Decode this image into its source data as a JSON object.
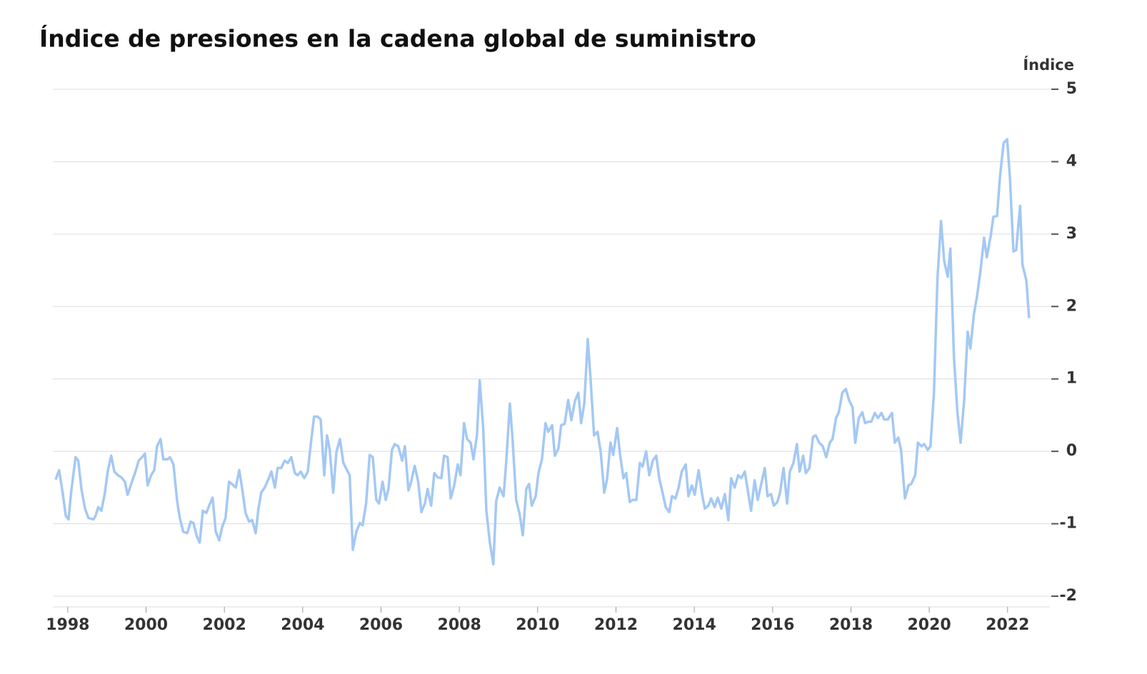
{
  "chart_data": {
    "type": "line",
    "title": "Índice de presiones en la cadena global de suministro",
    "y_label": "Índice",
    "xlim": [
      1997.62,
      2023.08
    ],
    "xticks": [
      1998,
      2000,
      2002,
      2004,
      2006,
      2008,
      2010,
      2012,
      2014,
      2016,
      2018,
      2020,
      2022
    ],
    "ylim": [
      -2,
      5
    ],
    "yticks": [
      -2,
      -1,
      0,
      1,
      2,
      3,
      4,
      5
    ],
    "grid": true,
    "series": [
      {
        "color": "#a4c8f4",
        "x": [
          1997.69,
          1997.78,
          1997.87,
          1997.95,
          1998.02,
          1998.09,
          1998.2,
          1998.27,
          1998.35,
          1998.44,
          1998.53,
          1998.66,
          1998.71,
          1998.78,
          1998.86,
          1998.95,
          1999.02,
          1999.11,
          1999.19,
          1999.28,
          1999.37,
          1999.46,
          1999.53,
          1999.62,
          1999.73,
          1999.81,
          1999.9,
          1999.97,
          2000.04,
          2000.13,
          2000.21,
          2000.28,
          2000.37,
          2000.44,
          2000.55,
          2000.61,
          2000.7,
          2000.79,
          2000.86,
          2000.95,
          2001.05,
          2001.14,
          2001.21,
          2001.3,
          2001.37,
          2001.45,
          2001.54,
          2001.61,
          2001.7,
          2001.78,
          2001.87,
          2001.94,
          2002.03,
          2002.12,
          2002.19,
          2002.29,
          2002.38,
          2002.45,
          2002.54,
          2002.63,
          2002.71,
          2002.8,
          2002.87,
          2002.94,
          2003.03,
          2003.12,
          2003.2,
          2003.29,
          2003.36,
          2003.45,
          2003.54,
          2003.62,
          2003.71,
          2003.8,
          2003.87,
          2003.95,
          2004.04,
          2004.13,
          2004.2,
          2004.29,
          2004.38,
          2004.46,
          2004.55,
          2004.62,
          2004.69,
          2004.78,
          2004.86,
          2004.95,
          2005.04,
          2005.13,
          2005.2,
          2005.28,
          2005.37,
          2005.46,
          2005.53,
          2005.62,
          2005.71,
          2005.79,
          2005.88,
          2005.95,
          2006.04,
          2006.12,
          2006.19,
          2006.28,
          2006.35,
          2006.44,
          2006.54,
          2006.61,
          2006.7,
          2006.77,
          2006.86,
          2006.95,
          2007.03,
          2007.12,
          2007.19,
          2007.28,
          2007.36,
          2007.45,
          2007.54,
          2007.61,
          2007.7,
          2007.78,
          2007.87,
          2007.96,
          2008.03,
          2008.12,
          2008.2,
          2008.29,
          2008.36,
          2008.45,
          2008.52,
          2008.61,
          2008.69,
          2008.78,
          2008.87,
          2008.94,
          2009.03,
          2009.13,
          2009.2,
          2009.29,
          2009.36,
          2009.45,
          2009.54,
          2009.62,
          2009.71,
          2009.78,
          2009.85,
          2009.95,
          2010.02,
          2010.11,
          2010.2,
          2010.27,
          2010.37,
          2010.44,
          2010.53,
          2010.6,
          2010.69,
          2010.78,
          2010.86,
          2010.95,
          2011.04,
          2011.11,
          2011.19,
          2011.28,
          2011.35,
          2011.44,
          2011.53,
          2011.61,
          2011.7,
          2011.77,
          2011.86,
          2011.93,
          2012.03,
          2012.1,
          2012.19,
          2012.26,
          2012.35,
          2012.43,
          2012.52,
          2012.61,
          2012.68,
          2012.77,
          2012.85,
          2012.94,
          2013.03,
          2013.1,
          2013.19,
          2013.27,
          2013.36,
          2013.43,
          2013.52,
          2013.59,
          2013.68,
          2013.78,
          2013.85,
          2013.94,
          2014.01,
          2014.11,
          2014.2,
          2014.27,
          2014.36,
          2014.43,
          2014.52,
          2014.6,
          2014.69,
          2014.78,
          2014.87,
          2014.94,
          2015.03,
          2015.12,
          2015.2,
          2015.29,
          2015.36,
          2015.45,
          2015.54,
          2015.62,
          2015.71,
          2015.8,
          2015.87,
          2015.96,
          2016.03,
          2016.12,
          2016.19,
          2016.28,
          2016.37,
          2016.44,
          2016.53,
          2016.62,
          2016.69,
          2016.78,
          2016.85,
          2016.94,
          2017.03,
          2017.1,
          2017.19,
          2017.28,
          2017.37,
          2017.46,
          2017.53,
          2017.62,
          2017.69,
          2017.78,
          2017.87,
          2017.95,
          2018.04,
          2018.11,
          2018.2,
          2018.29,
          2018.36,
          2018.45,
          2018.52,
          2018.61,
          2018.69,
          2018.78,
          2018.85,
          2018.94,
          2019.05,
          2019.12,
          2019.21,
          2019.28,
          2019.38,
          2019.47,
          2019.54,
          2019.64,
          2019.71,
          2019.8,
          2019.87,
          2019.96,
          2020.03,
          2020.12,
          2020.21,
          2020.3,
          2020.38,
          2020.47,
          2020.54,
          2020.63,
          2020.72,
          2020.8,
          2020.89,
          2020.98,
          2021.05,
          2021.14,
          2021.22,
          2021.31,
          2021.4,
          2021.47,
          2021.57,
          2021.64,
          2021.73,
          2021.81,
          2021.9,
          2021.99,
          2022.06,
          2022.15,
          2022.22,
          2022.32,
          2022.38,
          2022.48,
          2022.55
        ],
        "values": [
          -0.39,
          -0.26,
          -0.57,
          -0.89,
          -0.94,
          -0.55,
          -0.08,
          -0.13,
          -0.52,
          -0.79,
          -0.92,
          -0.94,
          -0.89,
          -0.77,
          -0.82,
          -0.57,
          -0.28,
          -0.06,
          -0.28,
          -0.33,
          -0.36,
          -0.42,
          -0.6,
          -0.45,
          -0.28,
          -0.13,
          -0.08,
          -0.03,
          -0.47,
          -0.33,
          -0.26,
          0.07,
          0.17,
          -0.11,
          -0.11,
          -0.08,
          -0.18,
          -0.67,
          -0.92,
          -1.11,
          -1.13,
          -0.97,
          -0.99,
          -1.18,
          -1.26,
          -0.82,
          -0.85,
          -0.75,
          -0.64,
          -1.11,
          -1.23,
          -1.05,
          -0.92,
          -0.42,
          -0.45,
          -0.5,
          -0.26,
          -0.5,
          -0.85,
          -0.97,
          -0.95,
          -1.13,
          -0.79,
          -0.57,
          -0.5,
          -0.39,
          -0.28,
          -0.5,
          -0.23,
          -0.23,
          -0.13,
          -0.16,
          -0.08,
          -0.3,
          -0.33,
          -0.28,
          -0.37,
          -0.28,
          0.07,
          0.48,
          0.48,
          0.44,
          -0.33,
          0.22,
          0.02,
          -0.57,
          -0.01,
          0.17,
          -0.16,
          -0.26,
          -0.33,
          -1.36,
          -1.11,
          -0.99,
          -1.02,
          -0.72,
          -0.05,
          -0.08,
          -0.67,
          -0.72,
          -0.42,
          -0.67,
          -0.52,
          0.02,
          0.1,
          0.07,
          -0.13,
          0.07,
          -0.54,
          -0.42,
          -0.2,
          -0.42,
          -0.84,
          -0.72,
          -0.52,
          -0.75,
          -0.3,
          -0.36,
          -0.37,
          -0.06,
          -0.08,
          -0.65,
          -0.47,
          -0.18,
          -0.33,
          0.39,
          0.17,
          0.12,
          -0.11,
          0.22,
          0.98,
          0.32,
          -0.82,
          -1.26,
          -1.56,
          -0.69,
          -0.5,
          -0.62,
          -0.13,
          0.66,
          0.17,
          -0.67,
          -0.87,
          -1.16,
          -0.52,
          -0.45,
          -0.75,
          -0.62,
          -0.3,
          -0.11,
          0.39,
          0.27,
          0.36,
          -0.06,
          0.04,
          0.36,
          0.38,
          0.71,
          0.43,
          0.69,
          0.81,
          0.39,
          0.66,
          1.55,
          1.01,
          0.22,
          0.27,
          -0.01,
          -0.57,
          -0.39,
          0.12,
          -0.05,
          0.32,
          -0.03,
          -0.37,
          -0.3,
          -0.7,
          -0.67,
          -0.67,
          -0.16,
          -0.21,
          0.0,
          -0.33,
          -0.13,
          -0.06,
          -0.36,
          -0.57,
          -0.77,
          -0.84,
          -0.62,
          -0.65,
          -0.52,
          -0.28,
          -0.18,
          -0.62,
          -0.47,
          -0.6,
          -0.26,
          -0.6,
          -0.79,
          -0.75,
          -0.65,
          -0.77,
          -0.64,
          -0.79,
          -0.59,
          -0.95,
          -0.37,
          -0.5,
          -0.33,
          -0.37,
          -0.28,
          -0.52,
          -0.82,
          -0.4,
          -0.67,
          -0.45,
          -0.23,
          -0.62,
          -0.59,
          -0.75,
          -0.7,
          -0.57,
          -0.23,
          -0.72,
          -0.28,
          -0.16,
          0.1,
          -0.28,
          -0.06,
          -0.3,
          -0.23,
          0.2,
          0.22,
          0.12,
          0.07,
          -0.08,
          0.12,
          0.17,
          0.46,
          0.54,
          0.81,
          0.86,
          0.71,
          0.61,
          0.12,
          0.46,
          0.54,
          0.39,
          0.41,
          0.41,
          0.53,
          0.46,
          0.53,
          0.44,
          0.44,
          0.53,
          0.12,
          0.19,
          0.02,
          -0.65,
          -0.47,
          -0.45,
          -0.33,
          0.12,
          0.07,
          0.1,
          0.02,
          0.07,
          0.81,
          2.39,
          3.18,
          2.63,
          2.41,
          2.8,
          1.3,
          0.53,
          0.12,
          0.69,
          1.65,
          1.42,
          1.89,
          2.14,
          2.5,
          2.95,
          2.68,
          2.98,
          3.24,
          3.25,
          3.82,
          4.26,
          4.31,
          3.77,
          2.76,
          2.78,
          3.39,
          2.58,
          2.36,
          1.84
        ]
      }
    ]
  }
}
